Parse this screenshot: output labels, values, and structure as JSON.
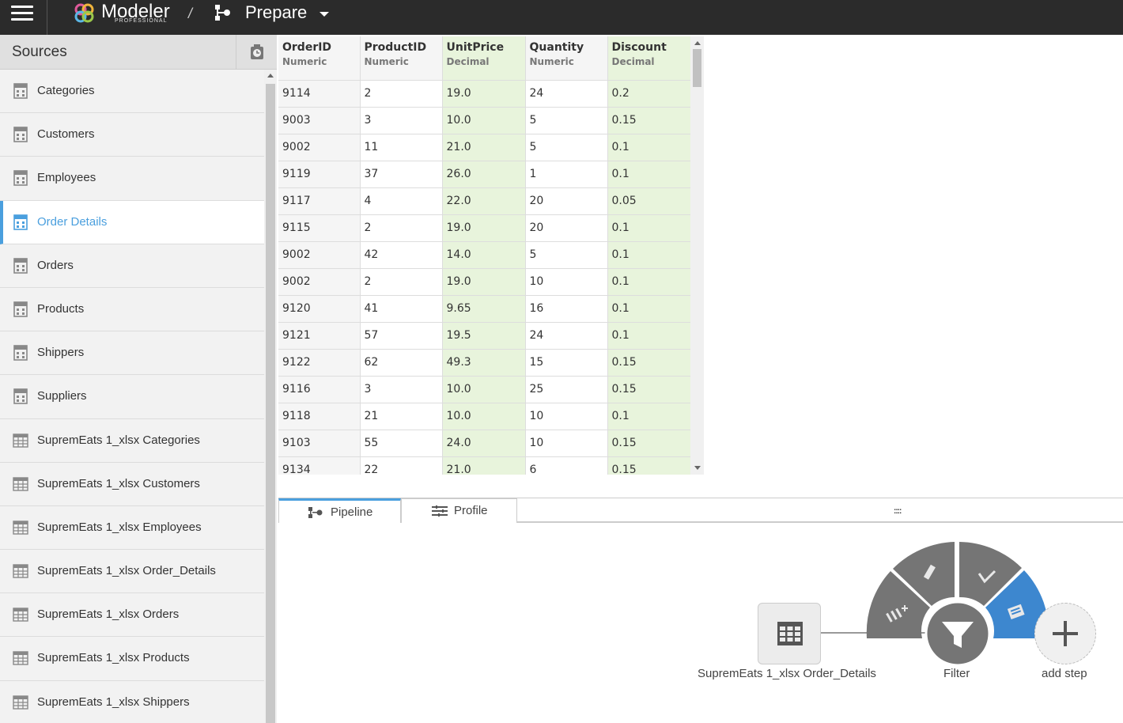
{
  "app": {
    "brand": "Modeler",
    "edition": "PROFESSIONAL",
    "separator": "/",
    "section": "Prepare"
  },
  "sidebar": {
    "title": "Sources",
    "items": [
      {
        "label": "Categories",
        "icon": "database-table-icon"
      },
      {
        "label": "Customers",
        "icon": "database-table-icon"
      },
      {
        "label": "Employees",
        "icon": "database-table-icon"
      },
      {
        "label": "Order Details",
        "icon": "database-table-icon",
        "active": true
      },
      {
        "label": "Orders",
        "icon": "database-table-icon"
      },
      {
        "label": "Products",
        "icon": "database-table-icon"
      },
      {
        "label": "Shippers",
        "icon": "database-table-icon"
      },
      {
        "label": "Suppliers",
        "icon": "database-table-icon"
      },
      {
        "label": "SupremEats 1_xlsx Categories",
        "icon": "grid-table-icon"
      },
      {
        "label": "SupremEats 1_xlsx Customers",
        "icon": "grid-table-icon"
      },
      {
        "label": "SupremEats 1_xlsx Employees",
        "icon": "grid-table-icon"
      },
      {
        "label": "SupremEats 1_xlsx Order_Details",
        "icon": "grid-table-icon"
      },
      {
        "label": "SupremEats 1_xlsx Orders",
        "icon": "grid-table-icon"
      },
      {
        "label": "SupremEats 1_xlsx Products",
        "icon": "grid-table-icon"
      },
      {
        "label": "SupremEats 1_xlsx Shippers",
        "icon": "grid-table-icon"
      }
    ]
  },
  "grid": {
    "columns": [
      {
        "name": "OrderID",
        "type": "Numeric"
      },
      {
        "name": "ProductID",
        "type": "Numeric"
      },
      {
        "name": "UnitPrice",
        "type": "Decimal"
      },
      {
        "name": "Quantity",
        "type": "Numeric"
      },
      {
        "name": "Discount",
        "type": "Decimal"
      }
    ],
    "rows": [
      [
        "9114",
        "2",
        "19.0",
        "24",
        "0.2"
      ],
      [
        "9003",
        "3",
        "10.0",
        "5",
        "0.15"
      ],
      [
        "9002",
        "11",
        "21.0",
        "5",
        "0.1"
      ],
      [
        "9119",
        "37",
        "26.0",
        "1",
        "0.1"
      ],
      [
        "9117",
        "4",
        "22.0",
        "20",
        "0.05"
      ],
      [
        "9115",
        "2",
        "19.0",
        "20",
        "0.1"
      ],
      [
        "9002",
        "42",
        "14.0",
        "5",
        "0.1"
      ],
      [
        "9002",
        "2",
        "19.0",
        "10",
        "0.1"
      ],
      [
        "9120",
        "41",
        "9.65",
        "16",
        "0.1"
      ],
      [
        "9121",
        "57",
        "19.5",
        "24",
        "0.1"
      ],
      [
        "9122",
        "62",
        "49.3",
        "15",
        "0.15"
      ],
      [
        "9116",
        "3",
        "10.0",
        "25",
        "0.15"
      ],
      [
        "9118",
        "21",
        "10.0",
        "10",
        "0.1"
      ],
      [
        "9103",
        "55",
        "24.0",
        "10",
        "0.15"
      ],
      [
        "9134",
        "22",
        "21.0",
        "6",
        "0.15"
      ]
    ]
  },
  "tabs": {
    "pipeline": "Pipeline",
    "profile": "Profile",
    "grip": "::::"
  },
  "pipeline": {
    "source_node": "SupremEats 1_xlsx Order_Details",
    "filter_node": "Filter",
    "add_step": "add step"
  },
  "colors": {
    "accent": "#4a9fde",
    "decimal_column": "#e8f4dc",
    "topbar": "#2b2b2b",
    "radial_menu": "#757575"
  }
}
